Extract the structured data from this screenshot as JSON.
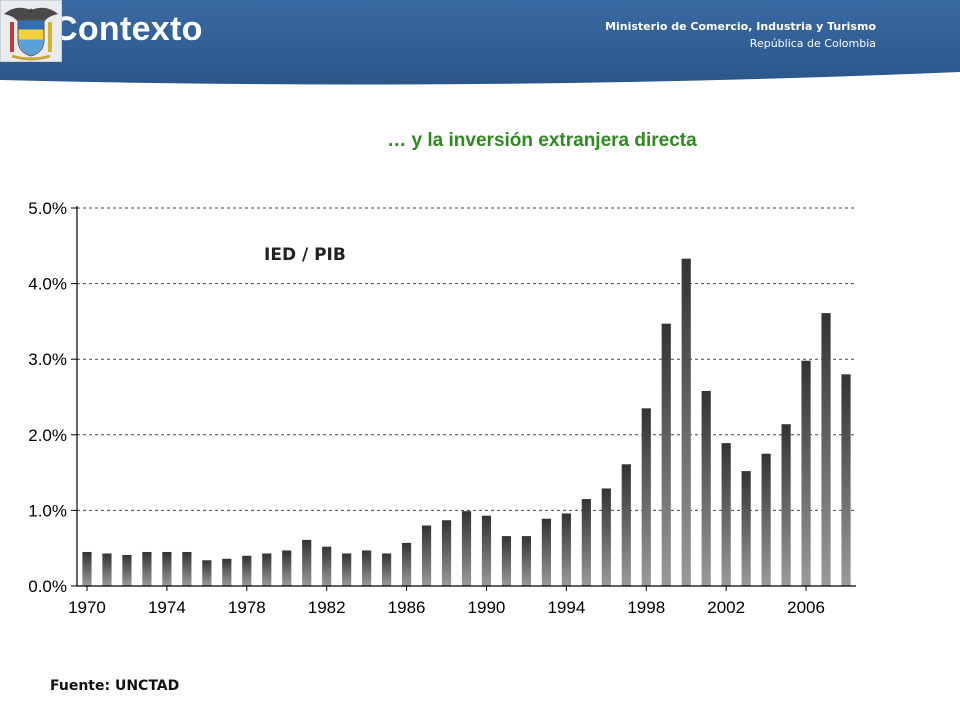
{
  "header": {
    "title": "II. Contexto",
    "ministry_line1": "Ministerio de Comercio, Industria y Turismo",
    "ministry_line2": "República de Colombia",
    "emblem_icon": "colombia-coat-of-arms-icon",
    "bg_color": "#2f5e94"
  },
  "slide": {
    "subtitle": "… y la inversión extranjera directa",
    "source": "Fuente: UNCTAD"
  },
  "chart_data": {
    "type": "bar",
    "title": "IED / PIB",
    "xlabel": "",
    "ylabel": "",
    "categories": [
      "1970",
      "1971",
      "1972",
      "1973",
      "1974",
      "1975",
      "1976",
      "1977",
      "1978",
      "1979",
      "1980",
      "1981",
      "1982",
      "1983",
      "1984",
      "1985",
      "1986",
      "1987",
      "1988",
      "1989",
      "1990",
      "1991",
      "1992",
      "1993",
      "1994",
      "1995",
      "1996",
      "1997",
      "1998",
      "1999",
      "2000",
      "2001",
      "2002",
      "2003",
      "2004",
      "2005",
      "2006",
      "2007",
      "2008"
    ],
    "values": [
      0.45,
      0.43,
      0.41,
      0.45,
      0.45,
      0.45,
      0.34,
      0.36,
      0.4,
      0.43,
      0.47,
      0.61,
      0.52,
      0.43,
      0.47,
      0.43,
      0.57,
      0.8,
      0.87,
      0.99,
      0.93,
      0.66,
      0.66,
      0.89,
      0.96,
      1.15,
      1.29,
      1.61,
      2.35,
      3.47,
      4.33,
      2.58,
      1.89,
      1.52,
      1.75,
      2.14,
      2.98,
      3.61,
      2.8
    ],
    "yticks": [
      "0.0%",
      "1.0%",
      "2.0%",
      "3.0%",
      "4.0%",
      "5.0%"
    ],
    "xticks": [
      "1970",
      "1974",
      "1978",
      "1982",
      "1986",
      "1990",
      "1994",
      "1998",
      "2002",
      "2006"
    ],
    "ylim": [
      0,
      5
    ],
    "grid": true,
    "bar_color_top": "#333333",
    "bar_color_bottom": "#9a9a9a"
  }
}
